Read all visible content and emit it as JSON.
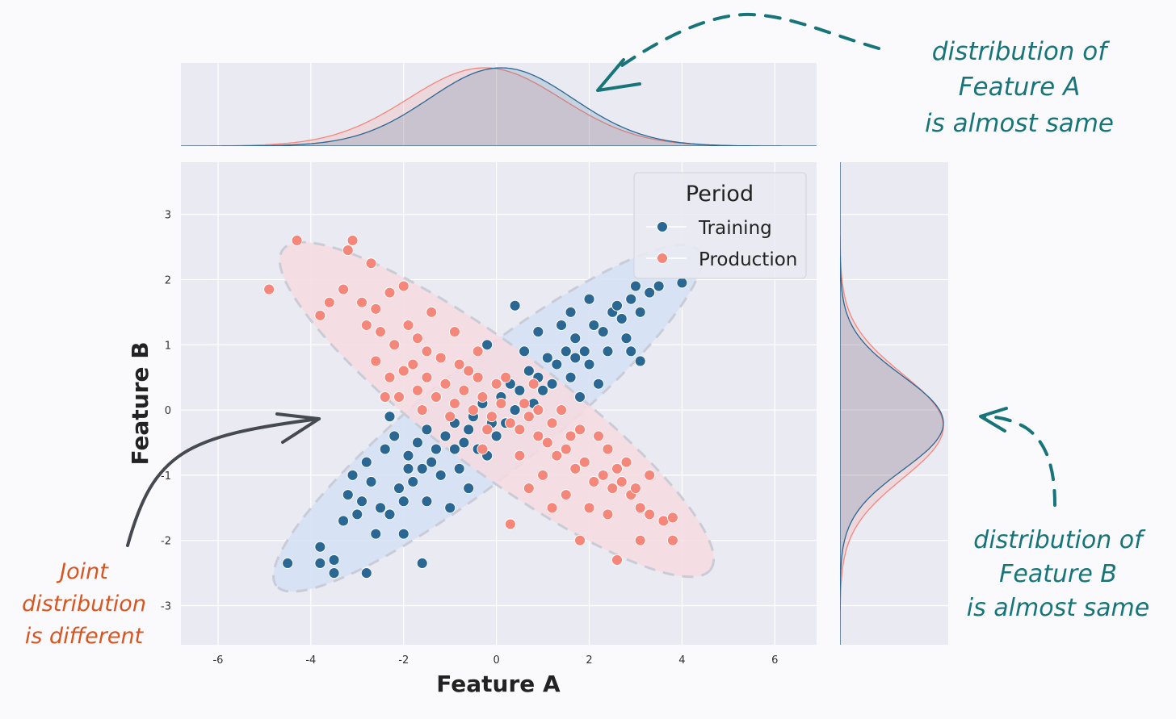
{
  "chart_data": {
    "type": "scatter",
    "xlabel": "Feature A",
    "ylabel": "Feature B",
    "xlim": [
      -6.8,
      6.9
    ],
    "ylim": [
      -3.6,
      3.8
    ],
    "x_ticks": [
      -6,
      -4,
      -2,
      0,
      2,
      4,
      6
    ],
    "y_ticks": [
      -3,
      -2,
      -1,
      0,
      1,
      2,
      3
    ],
    "x_tick_labels": [
      "-6",
      "-4",
      "-2",
      "0",
      "2",
      "4",
      "6"
    ],
    "y_tick_labels": [
      "-3",
      "-2",
      "-1",
      "0",
      "1",
      "2",
      "3"
    ],
    "grid": true,
    "legend": {
      "title": "Period",
      "placement": "top-right",
      "entries": [
        {
          "label": "Training",
          "color": "#2a6792"
        },
        {
          "label": "Production",
          "color": "#f5867a"
        }
      ]
    },
    "series": [
      {
        "name": "Training",
        "color": "#2a6792",
        "ellipse_fill": "#d4e1f4",
        "points": [
          [
            -4.5,
            -2.35
          ],
          [
            -3.8,
            -2.1
          ],
          [
            -3.5,
            -2.5
          ],
          [
            -3.5,
            -2.3
          ],
          [
            -2.8,
            -2.5
          ],
          [
            -1.6,
            -2.35
          ],
          [
            -3.8,
            -2.35
          ],
          [
            -3.3,
            -1.7
          ],
          [
            -2.6,
            -1.9
          ],
          [
            -2.0,
            -1.9
          ],
          [
            -2.9,
            -1.4
          ],
          [
            -3.1,
            -1.0
          ],
          [
            -2.5,
            -1.5
          ],
          [
            -2.1,
            -1.2
          ],
          [
            -1.8,
            -1.1
          ],
          [
            -1.5,
            -1.4
          ],
          [
            -1.2,
            -1.0
          ],
          [
            -2.8,
            -0.8
          ],
          [
            -2.4,
            -0.6
          ],
          [
            -2.2,
            -0.4
          ],
          [
            -1.9,
            -0.7
          ],
          [
            -1.7,
            -0.5
          ],
          [
            -1.5,
            -0.3
          ],
          [
            -1.3,
            -0.6
          ],
          [
            -1.1,
            -0.4
          ],
          [
            -0.9,
            -0.2
          ],
          [
            -0.7,
            -0.5
          ],
          [
            -0.5,
            -0.1
          ],
          [
            -0.3,
            0.1
          ],
          [
            -0.1,
            -0.2
          ],
          [
            0.1,
            0.2
          ],
          [
            0.3,
            0.4
          ],
          [
            0.5,
            0.3
          ],
          [
            0.7,
            0.6
          ],
          [
            0.9,
            0.5
          ],
          [
            1.1,
            0.8
          ],
          [
            1.3,
            0.7
          ],
          [
            1.5,
            0.9
          ],
          [
            1.7,
            1.1
          ],
          [
            1.9,
            0.9
          ],
          [
            2.1,
            1.3
          ],
          [
            2.3,
            1.2
          ],
          [
            2.5,
            1.5
          ],
          [
            2.7,
            1.4
          ],
          [
            2.9,
            1.7
          ],
          [
            3.1,
            1.5
          ],
          [
            3.3,
            1.8
          ],
          [
            3.5,
            1.9
          ],
          [
            4.0,
            1.95
          ],
          [
            3.1,
            0.75
          ],
          [
            2.0,
            1.7
          ],
          [
            1.6,
            1.5
          ],
          [
            0.9,
            1.2
          ],
          [
            0.4,
            1.6
          ],
          [
            -0.2,
            1.0
          ],
          [
            -1.3,
            0.2
          ],
          [
            -2.3,
            -0.1
          ],
          [
            -3.2,
            -1.3
          ],
          [
            -2.7,
            -1.1
          ],
          [
            -1.9,
            -0.9
          ],
          [
            -1.4,
            -0.8
          ],
          [
            -0.8,
            -0.9
          ],
          [
            -0.4,
            -0.6
          ],
          [
            0.0,
            -0.4
          ],
          [
            0.4,
            0.0
          ],
          [
            0.8,
            0.1
          ],
          [
            1.2,
            0.4
          ],
          [
            1.6,
            0.5
          ],
          [
            2.0,
            0.7
          ],
          [
            2.4,
            0.9
          ],
          [
            2.8,
            1.1
          ],
          [
            2.2,
            0.4
          ],
          [
            1.8,
            0.2
          ],
          [
            1.0,
            0.3
          ],
          [
            -0.2,
            -0.7
          ],
          [
            -0.9,
            -0.6
          ],
          [
            -1.6,
            -0.9
          ],
          [
            -2.0,
            -1.4
          ],
          [
            -2.3,
            -1.6
          ],
          [
            -3.0,
            -1.6
          ],
          [
            -1.0,
            -1.5
          ],
          [
            -0.6,
            -1.2
          ],
          [
            1.4,
            1.3
          ],
          [
            2.6,
            1.6
          ],
          [
            3.0,
            1.9
          ],
          [
            2.9,
            0.9
          ],
          [
            1.7,
            0.8
          ],
          [
            0.6,
            0.9
          ],
          [
            0.2,
            -0.2
          ],
          [
            -0.6,
            -0.3
          ]
        ]
      },
      {
        "name": "Production",
        "color": "#f5867a",
        "ellipse_fill": "#f6dbe0",
        "points": [
          [
            -4.9,
            1.85
          ],
          [
            -4.3,
            2.6
          ],
          [
            -3.1,
            2.6
          ],
          [
            -3.2,
            2.45
          ],
          [
            -2.7,
            2.25
          ],
          [
            -3.8,
            1.45
          ],
          [
            -3.6,
            1.65
          ],
          [
            -3.3,
            1.85
          ],
          [
            -2.9,
            1.65
          ],
          [
            -2.6,
            1.55
          ],
          [
            -2.3,
            1.8
          ],
          [
            -2.0,
            1.9
          ],
          [
            -2.5,
            1.2
          ],
          [
            -2.2,
            1.0
          ],
          [
            -1.9,
            1.3
          ],
          [
            -1.7,
            1.1
          ],
          [
            -1.5,
            0.9
          ],
          [
            -2.6,
            0.75
          ],
          [
            -2.3,
            0.5
          ],
          [
            -2.0,
            0.6
          ],
          [
            -1.7,
            0.3
          ],
          [
            -1.5,
            0.5
          ],
          [
            -1.3,
            0.2
          ],
          [
            -1.1,
            0.4
          ],
          [
            -0.9,
            0.1
          ],
          [
            -0.7,
            0.3
          ],
          [
            -0.5,
            0.0
          ],
          [
            -0.3,
            0.2
          ],
          [
            -0.1,
            -0.1
          ],
          [
            0.1,
            0.1
          ],
          [
            0.3,
            -0.2
          ],
          [
            0.5,
            -0.3
          ],
          [
            0.7,
            -0.1
          ],
          [
            0.9,
            -0.4
          ],
          [
            1.1,
            -0.5
          ],
          [
            1.3,
            -0.7
          ],
          [
            1.5,
            -0.6
          ],
          [
            1.7,
            -0.9
          ],
          [
            1.9,
            -0.8
          ],
          [
            2.1,
            -1.1
          ],
          [
            2.3,
            -1.0
          ],
          [
            2.5,
            -1.2
          ],
          [
            2.7,
            -1.1
          ],
          [
            2.9,
            -1.3
          ],
          [
            3.1,
            -1.5
          ],
          [
            3.3,
            -1.6
          ],
          [
            3.6,
            -1.7
          ],
          [
            3.8,
            -1.65
          ],
          [
            3.8,
            -2.0
          ],
          [
            3.1,
            -2.0
          ],
          [
            2.6,
            -2.3
          ],
          [
            1.8,
            -2.0
          ],
          [
            0.3,
            -1.75
          ],
          [
            -0.3,
            -0.6
          ],
          [
            0.0,
            0.4
          ],
          [
            0.6,
            0.1
          ],
          [
            1.2,
            -0.2
          ],
          [
            1.8,
            -0.3
          ],
          [
            2.4,
            -0.6
          ],
          [
            2.0,
            -1.5
          ],
          [
            1.5,
            -1.3
          ],
          [
            1.0,
            -1.0
          ],
          [
            0.5,
            -0.7
          ],
          [
            -0.4,
            0.5
          ],
          [
            -0.8,
            0.7
          ],
          [
            -1.2,
            0.8
          ],
          [
            -1.8,
            0.7
          ],
          [
            -2.4,
            0.2
          ],
          [
            -2.8,
            1.3
          ],
          [
            -1.4,
            1.5
          ],
          [
            -0.9,
            1.2
          ],
          [
            -0.4,
            0.9
          ],
          [
            0.2,
            0.5
          ],
          [
            0.8,
            0.4
          ],
          [
            1.4,
            0.0
          ],
          [
            2.2,
            -0.4
          ],
          [
            2.8,
            -0.8
          ],
          [
            3.3,
            -1.0
          ],
          [
            2.4,
            -1.6
          ],
          [
            1.2,
            -1.5
          ],
          [
            0.7,
            -1.2
          ],
          [
            -0.2,
            -0.3
          ],
          [
            -1.0,
            -0.1
          ],
          [
            -1.6,
            0.0
          ],
          [
            -2.1,
            0.2
          ],
          [
            -0.6,
            0.6
          ],
          [
            0.9,
            0.0
          ],
          [
            1.6,
            -0.4
          ],
          [
            2.6,
            -0.9
          ],
          [
            3.0,
            -1.2
          ]
        ]
      }
    ],
    "marginal_x": {
      "label": "Feature A",
      "series": [
        {
          "name": "Training",
          "mean": 0.1,
          "sd": 1.55,
          "color": "#2a6792"
        },
        {
          "name": "Production",
          "mean": -0.25,
          "sd": 1.65,
          "color": "#f5867a"
        }
      ]
    },
    "marginal_y": {
      "label": "Feature B",
      "series": [
        {
          "name": "Training",
          "mean": -0.2,
          "sd": 0.72,
          "color": "#2a6792"
        },
        {
          "name": "Production",
          "mean": -0.25,
          "sd": 0.8,
          "color": "#f5867a"
        }
      ]
    }
  },
  "annotations": {
    "feature_a": [
      "distribution of",
      "Feature A",
      "is almost same"
    ],
    "feature_b": [
      "distribution of",
      "Feature B",
      "is almost same"
    ],
    "joint": [
      "Joint",
      "distribution",
      "is different"
    ],
    "teal_color": "#17757a",
    "orange_color": "#d9541e"
  }
}
